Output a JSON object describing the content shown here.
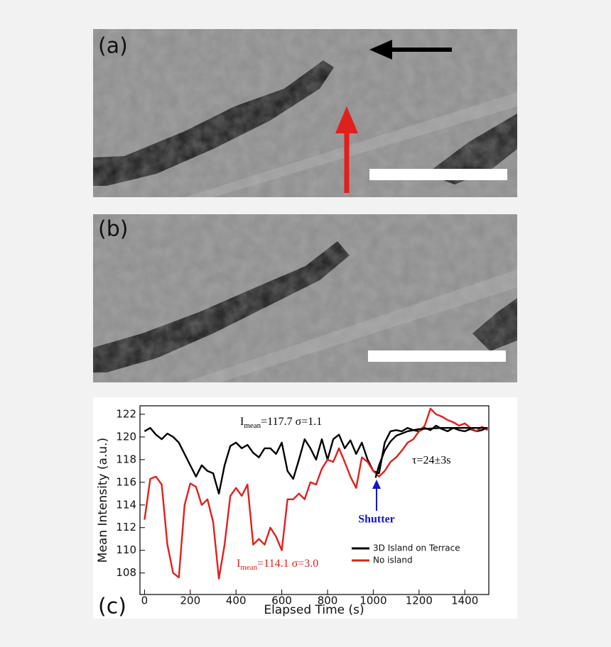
{
  "panel_labels": {
    "a": "(a)",
    "b": "(b)"
  },
  "chart_data": {
    "type": "line",
    "panel_label": "(c)",
    "x_label": "Elapsed Time (s)",
    "y_label": "Mean Intensity (a.u.)",
    "xlim": [
      -20,
      1505
    ],
    "ylim": [
      106.1,
      122.75
    ],
    "xticks": [
      0,
      200,
      400,
      600,
      800,
      1000,
      1200,
      1400
    ],
    "yticks": [
      108,
      110,
      112,
      114,
      116,
      118,
      120,
      122
    ],
    "x": [
      0,
      25,
      50,
      75,
      100,
      125,
      150,
      175,
      200,
      225,
      250,
      275,
      300,
      325,
      350,
      375,
      400,
      425,
      450,
      475,
      500,
      525,
      550,
      575,
      600,
      625,
      650,
      675,
      700,
      725,
      750,
      775,
      800,
      825,
      850,
      875,
      900,
      925,
      950,
      975,
      1000,
      1025,
      1050,
      1075,
      1100,
      1125,
      1150,
      1175,
      1200,
      1225,
      1250,
      1275,
      1300,
      1325,
      1350,
      1375,
      1400,
      1425,
      1450,
      1475,
      1500
    ],
    "series": [
      {
        "name": "3D Island on Terrace",
        "color": "#000000",
        "values": [
          120.5,
          120.8,
          120.2,
          119.8,
          120.3,
          120.0,
          119.5,
          118.5,
          117.5,
          116.5,
          117.5,
          117.0,
          116.8,
          115.0,
          117.5,
          119.2,
          119.5,
          119.0,
          119.3,
          118.6,
          118.2,
          119.0,
          119.0,
          118.5,
          119.5,
          117.0,
          116.3,
          118.0,
          119.8,
          119.0,
          118.0,
          119.8,
          118.0,
          119.8,
          120.2,
          119.0,
          119.7,
          118.5,
          119.5,
          118.0,
          117.0,
          116.8,
          119.5,
          120.5,
          120.6,
          120.5,
          120.8,
          120.6,
          120.5,
          120.8,
          120.6,
          121.0,
          120.7,
          120.5,
          120.8,
          120.6,
          120.5,
          120.7,
          120.5,
          120.6,
          120.8
        ]
      },
      {
        "name": "No island",
        "color": "#e0201b",
        "values": [
          112.7,
          116.3,
          116.5,
          115.8,
          110.5,
          108.0,
          107.6,
          114.0,
          115.9,
          115.6,
          114.0,
          114.5,
          112.5,
          107.5,
          110.5,
          114.8,
          115.5,
          114.8,
          115.8,
          110.5,
          111.0,
          110.5,
          112.0,
          111.2,
          110.0,
          114.5,
          114.5,
          115.0,
          114.5,
          116.0,
          115.8,
          117.2,
          118.0,
          117.8,
          119.0,
          117.8,
          116.5,
          115.5,
          118.2,
          117.8,
          117.0,
          116.5,
          117.0,
          117.8,
          118.2,
          118.8,
          119.5,
          119.8,
          120.5,
          121.0,
          122.5,
          122.0,
          121.8,
          121.5,
          121.3,
          121.0,
          121.2,
          120.8,
          120.5,
          120.9,
          120.6
        ]
      },
      {
        "color": "#000000",
        "x": [
          1010,
          1025,
          1050,
          1075,
          1100,
          1150,
          1200,
          1300,
          1400,
          1500
        ],
        "values": [
          116.4,
          117.5,
          118.8,
          119.6,
          120.1,
          120.5,
          120.7,
          120.8,
          120.8,
          120.8
        ]
      }
    ],
    "annotations": [
      {
        "text": "I",
        "sub": "mean",
        "rest": "=117.7 σ=1.1",
        "color": "#000000"
      },
      {
        "text": "τ=24±3s",
        "color": "#000000"
      },
      {
        "text": "I",
        "sub": "mean",
        "rest": "=114.1 σ=3.0",
        "color": "#e0201b"
      },
      {
        "text": "Shutter",
        "color": "#1515d0"
      }
    ]
  }
}
